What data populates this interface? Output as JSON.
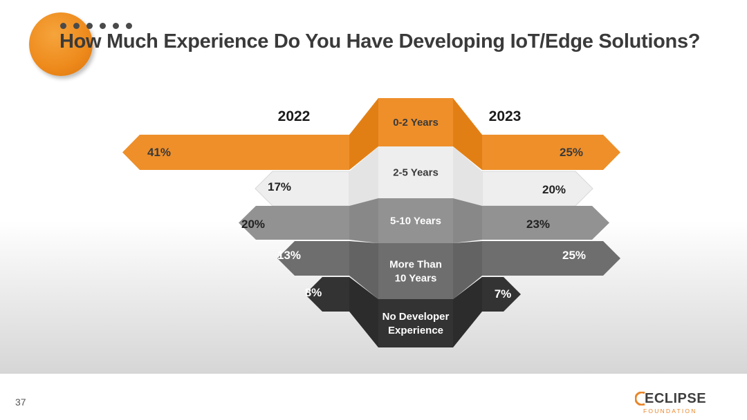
{
  "slide": {
    "title": "How Much Experience Do You Have Developing IoT/Edge Solutions?",
    "page_number": "37",
    "logo_word": "ECLIPSE",
    "logo_sub": "FOUNDATION",
    "icon": "eclipse-arc-icon"
  },
  "chart_data": {
    "type": "bar",
    "title": "How Much Experience Do You Have Developing IoT/Edge Solutions?",
    "left_year": "2022",
    "right_year": "2023",
    "categories": [
      "0-2 Years",
      "2-5 Years",
      "5-10 Years",
      "More Than 10 Years",
      "No Developer Experience"
    ],
    "category_lines": [
      [
        "0-2 Years"
      ],
      [
        "2-5 Years"
      ],
      [
        "5-10 Years"
      ],
      [
        "More Than",
        "10 Years"
      ],
      [
        "No Developer",
        "Experience"
      ]
    ],
    "series": [
      {
        "name": "2022",
        "values": [
          41,
          17,
          20,
          13,
          8
        ],
        "labels": [
          "41%",
          "17%",
          "20%",
          "13%",
          "8%"
        ]
      },
      {
        "name": "2023",
        "values": [
          25,
          20,
          23,
          25,
          7
        ],
        "labels": [
          "25%",
          "20%",
          "23%",
          "25%",
          "7%"
        ]
      }
    ],
    "colors": [
      "#ee8f2a",
      "#eeeeee",
      "#929292",
      "#6e6e6e",
      "#333333"
    ],
    "side_colors": [
      "#e27f14",
      "#e4e4e4",
      "#888888",
      "#636363",
      "#2c2c2c"
    ],
    "label_colors": [
      "#3a3a3a",
      "#3a3a3a",
      "#ffffff",
      "#ffffff",
      "#ffffff"
    ],
    "value_label_colors": [
      "#3a3a3a",
      "#222222",
      "#222222",
      "#ffffff",
      "#ffffff"
    ]
  }
}
